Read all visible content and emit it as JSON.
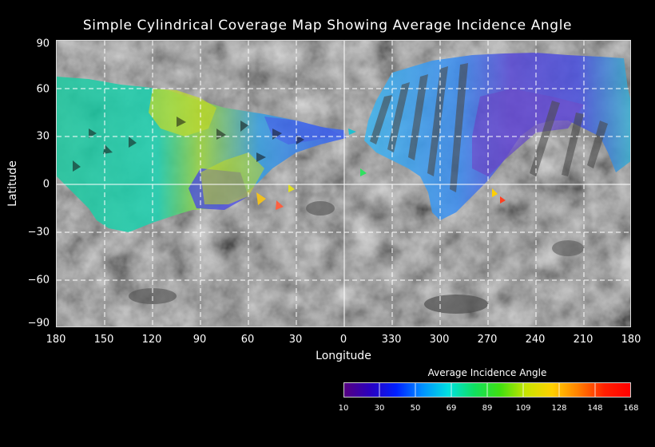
{
  "title": "Simple Cylindrical Coverage Map Showing Average Incidence Angle",
  "x_axis": {
    "label": "Longitude",
    "ticks": [
      "180",
      "150",
      "120",
      "90",
      "60",
      "30",
      "0",
      "330",
      "300",
      "270",
      "240",
      "210",
      "180"
    ]
  },
  "y_axis": {
    "label": "Latitude",
    "ticks": [
      "90",
      "60",
      "30",
      "0",
      "−30",
      "−60",
      "−90"
    ],
    "range": [
      -90,
      90
    ]
  },
  "legend": {
    "title": "Average Incidence Angle",
    "ticks": [
      "10",
      "30",
      "50",
      "69",
      "89",
      "109",
      "128",
      "148",
      "168"
    ],
    "colors": [
      "#55007f",
      "#2a00c0",
      "#0020ff",
      "#0090ff",
      "#00e0e0",
      "#10e060",
      "#40e010",
      "#c8e400",
      "#ffd000",
      "#ff8000",
      "#ff2000",
      "#ff0000"
    ]
  },
  "colors": {
    "background": "#000000",
    "grid": "#ffffff",
    "basemap": "#6a6a6a"
  }
}
